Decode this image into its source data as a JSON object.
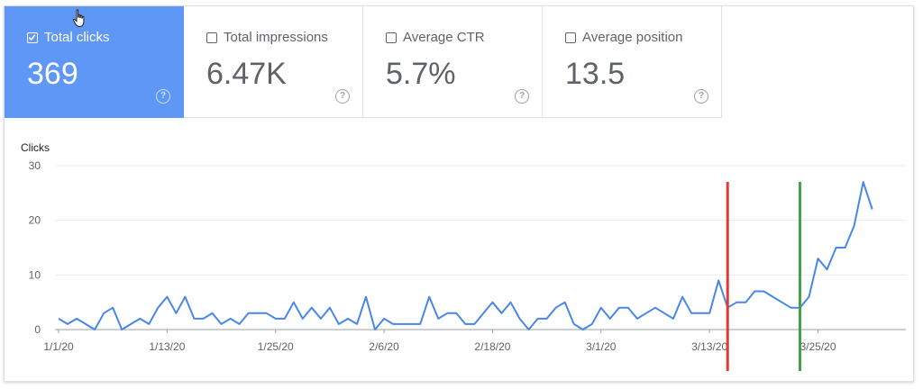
{
  "metrics": [
    {
      "label": "Total clicks",
      "value": "369",
      "active": true
    },
    {
      "label": "Total impressions",
      "value": "6.47K",
      "active": false
    },
    {
      "label": "Average CTR",
      "value": "5.7%",
      "active": false
    },
    {
      "label": "Average position",
      "value": "13.5",
      "active": false
    }
  ],
  "help_glyph": "?",
  "chart_data": {
    "type": "line",
    "ylabel": "Clicks",
    "ylim": [
      0,
      30
    ],
    "yticks": [
      0,
      10,
      20,
      30
    ],
    "grid": true,
    "x_tick_labels": [
      "1/1/20",
      "1/13/20",
      "1/25/20",
      "2/6/20",
      "2/18/20",
      "3/1/20",
      "3/13/20",
      "3/25/20"
    ],
    "x_tick_index": [
      0,
      12,
      24,
      36,
      48,
      60,
      72,
      84
    ],
    "series": [
      {
        "color": "#4a86e8",
        "values": [
          2,
          1,
          2,
          1,
          0,
          3,
          4,
          0,
          1,
          2,
          1,
          4,
          6,
          3,
          6,
          2,
          2,
          3,
          1,
          2,
          1,
          3,
          3,
          3,
          2,
          2,
          5,
          2,
          4,
          2,
          4,
          1,
          2,
          1,
          6,
          0,
          2,
          1,
          1,
          1,
          1,
          6,
          2,
          3,
          3,
          1,
          1,
          3,
          5,
          3,
          5,
          2,
          0,
          2,
          2,
          4,
          5,
          1,
          0,
          1,
          4,
          2,
          4,
          4,
          2,
          3,
          4,
          3,
          2,
          6,
          3,
          3,
          3,
          9,
          4,
          5,
          5,
          7,
          7,
          6,
          5,
          4,
          4,
          6,
          13,
          11,
          15,
          15,
          19,
          27,
          22
        ]
      }
    ],
    "markers": [
      {
        "color": "#e53935",
        "x_index": 74
      },
      {
        "color": "#43a047",
        "x_index": 82
      }
    ]
  }
}
